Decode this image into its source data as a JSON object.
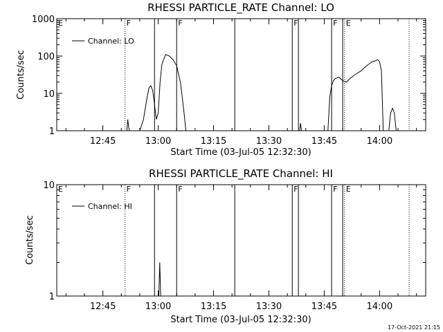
{
  "chart_data": [
    {
      "type": "line",
      "title": "RHESSI PARTICLE_RATE Channel: LO",
      "xlabel": "Start Time (03-Jul-05 12:32:30)",
      "ylabel": "Counts/sec",
      "log_y": true,
      "xlim": [
        "12:32:30",
        "14:12:30"
      ],
      "ylim": [
        1,
        1000
      ],
      "x_ticks": [
        "12:45",
        "13:00",
        "13:15",
        "13:30",
        "13:45",
        "14:00"
      ],
      "y_ticks": [
        "1",
        "10",
        "100",
        "1000"
      ],
      "legend": {
        "position": "top-left",
        "entries": [
          "Channel: LO"
        ]
      },
      "series": [
        {
          "name": "Channel: LO",
          "x": [
            "12:51:30",
            "12:51:45",
            "12:52:00",
            "12:52:15",
            "12:55:00",
            "12:56:00",
            "12:57:00",
            "12:57:30",
            "12:58:00",
            "12:58:30",
            "12:59:00",
            "12:59:30",
            "13:00:00",
            "13:00:30",
            "13:01:00",
            "13:02:00",
            "13:03:00",
            "13:04:00",
            "13:05:00",
            "13:06:00",
            "13:06:30",
            "13:07:00",
            "13:07:30",
            null,
            "13:38:20",
            "13:38:35",
            "13:38:50",
            null,
            "13:46:00",
            "13:46:30",
            "13:47:00",
            "13:47:30",
            "13:48:00",
            "13:49:00",
            "13:50:00",
            "13:51:00",
            "13:52:00",
            "13:53:00",
            "13:54:00",
            "13:55:00",
            "13:56:00",
            "13:57:00",
            "13:58:00",
            "13:59:00",
            "13:59:30",
            "14:00:00",
            "14:00:30",
            "14:01:00",
            null,
            "14:02:30",
            "14:03:00",
            "14:03:30",
            "14:04:00",
            "14:04:30"
          ],
          "y": [
            1,
            2,
            1.2,
            1,
            1,
            2,
            8,
            14,
            16,
            12,
            5,
            2,
            3,
            20,
            60,
            110,
            100,
            80,
            55,
            20,
            8,
            3,
            1,
            null,
            1,
            1.6,
            1,
            null,
            1,
            8,
            16,
            22,
            25,
            27,
            22,
            20,
            25,
            30,
            35,
            40,
            50,
            60,
            70,
            75,
            80,
            70,
            40,
            1,
            null,
            1,
            3,
            4,
            3,
            1
          ]
        }
      ]
    },
    {
      "type": "line",
      "title": "RHESSI PARTICLE_RATE Channel: HI",
      "xlabel": "Start Time (03-Jul-05 12:32:30)",
      "ylabel": "Counts/sec",
      "log_y": true,
      "xlim": [
        "12:32:30",
        "14:12:30"
      ],
      "ylim": [
        1,
        10
      ],
      "x_ticks": [
        "12:45",
        "13:00",
        "13:15",
        "13:30",
        "13:45",
        "14:00"
      ],
      "y_ticks": [
        "1",
        "10"
      ],
      "legend": {
        "position": "top-left",
        "entries": [
          "Channel: HI"
        ]
      },
      "series": [
        {
          "name": "Channel: HI",
          "x": [
            "13:00:10",
            "13:00:25",
            "13:00:40"
          ],
          "y": [
            1,
            2,
            1
          ]
        }
      ]
    }
  ],
  "markers": {
    "solid": [
      "12:59:00",
      "13:05:00",
      "13:20:45",
      "13:36:20",
      "13:38:00",
      "13:47:00",
      "13:50:00"
    ],
    "dotted": [
      "12:51:00",
      "13:50:30",
      "14:08:00"
    ],
    "flags_top": [
      {
        "t": "12:32:30",
        "label": "E"
      },
      {
        "t": "12:51:00",
        "label": "F"
      },
      {
        "t": "13:05:00",
        "label": "F"
      },
      {
        "t": "13:36:20",
        "label": "F"
      },
      {
        "t": "13:47:00",
        "label": "F"
      },
      {
        "t": "13:50:30",
        "label": "E"
      }
    ]
  },
  "footer": {
    "timestamp": "17-Oct-2021 21:15"
  }
}
